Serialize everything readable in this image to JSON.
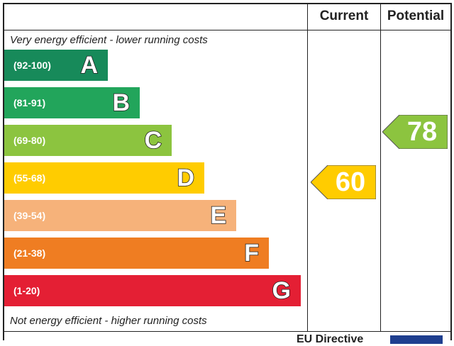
{
  "header": {
    "current": "Current",
    "potential": "Potential"
  },
  "captions": {
    "top": "Very energy efficient - lower running costs",
    "bottom": "Not energy efficient - higher running costs"
  },
  "footer": {
    "text": "EU Directive"
  },
  "chart_data": {
    "type": "bar",
    "categories": [
      "A",
      "B",
      "C",
      "D",
      "E",
      "F",
      "G"
    ],
    "bands": [
      {
        "letter": "A",
        "range": "(92-100)",
        "min": 92,
        "max": 100,
        "color": "#178a5a"
      },
      {
        "letter": "B",
        "range": "(81-91)",
        "min": 81,
        "max": 91,
        "color": "#22a55b"
      },
      {
        "letter": "C",
        "range": "(69-80)",
        "min": 69,
        "max": 80,
        "color": "#8cc43f"
      },
      {
        "letter": "D",
        "range": "(55-68)",
        "min": 55,
        "max": 68,
        "color": "#ffcc00"
      },
      {
        "letter": "E",
        "range": "(39-54)",
        "min": 39,
        "max": 54,
        "color": "#f6b27a"
      },
      {
        "letter": "F",
        "range": "(21-38)",
        "min": 21,
        "max": 38,
        "color": "#ef7d22"
      },
      {
        "letter": "G",
        "range": "(1-20)",
        "min": 1,
        "max": 20,
        "color": "#e41f34"
      }
    ],
    "current": {
      "value": 60,
      "band": "D",
      "color": "#ffcc00"
    },
    "potential": {
      "value": 78,
      "band": "C",
      "color": "#8cc43f"
    }
  }
}
